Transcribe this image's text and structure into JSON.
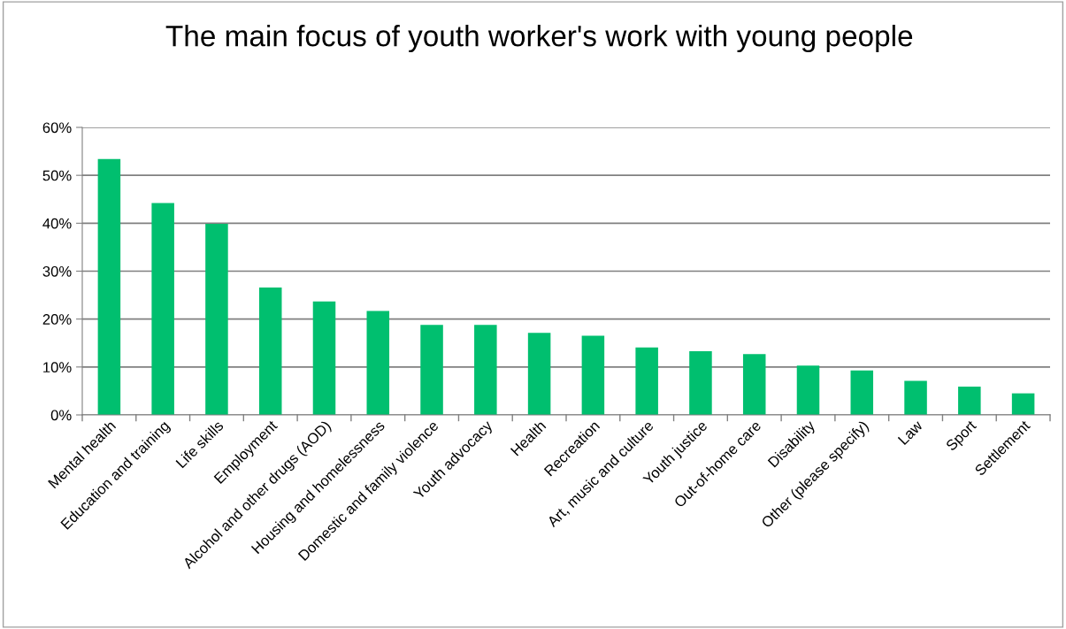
{
  "chart_data": {
    "type": "bar",
    "title": "The main focus of youth worker's work with young people",
    "categories": [
      "Mental health",
      "Education and training",
      "Life skills",
      "Employment",
      "Alcohol and other drugs (AOD)",
      "Housing and homelessness",
      "Domestic and family violence",
      "Youth advocacy",
      "Health",
      "Recreation",
      "Art, music and culture",
      "Youth justice",
      "Out-of-home care",
      "Disability",
      "Other (please specify)",
      "Law",
      "Sport",
      "Settlement"
    ],
    "values": [
      53.4,
      44.2,
      39.9,
      26.6,
      23.7,
      21.7,
      18.8,
      18.8,
      17.1,
      16.5,
      14.1,
      13.3,
      12.7,
      10.3,
      9.3,
      7.1,
      5.9,
      4.5
    ],
    "color": "#00bf6f",
    "ylim": [
      0,
      60
    ],
    "yticks": [
      {
        "value": 0,
        "label": "0%"
      },
      {
        "value": 10,
        "label": "10%"
      },
      {
        "value": 20,
        "label": "20%"
      },
      {
        "value": 30,
        "label": "30%"
      },
      {
        "value": 40,
        "label": "40%"
      },
      {
        "value": 50,
        "label": "50%"
      },
      {
        "value": 60,
        "label": "60%"
      }
    ],
    "grid": "y",
    "legend": false
  }
}
